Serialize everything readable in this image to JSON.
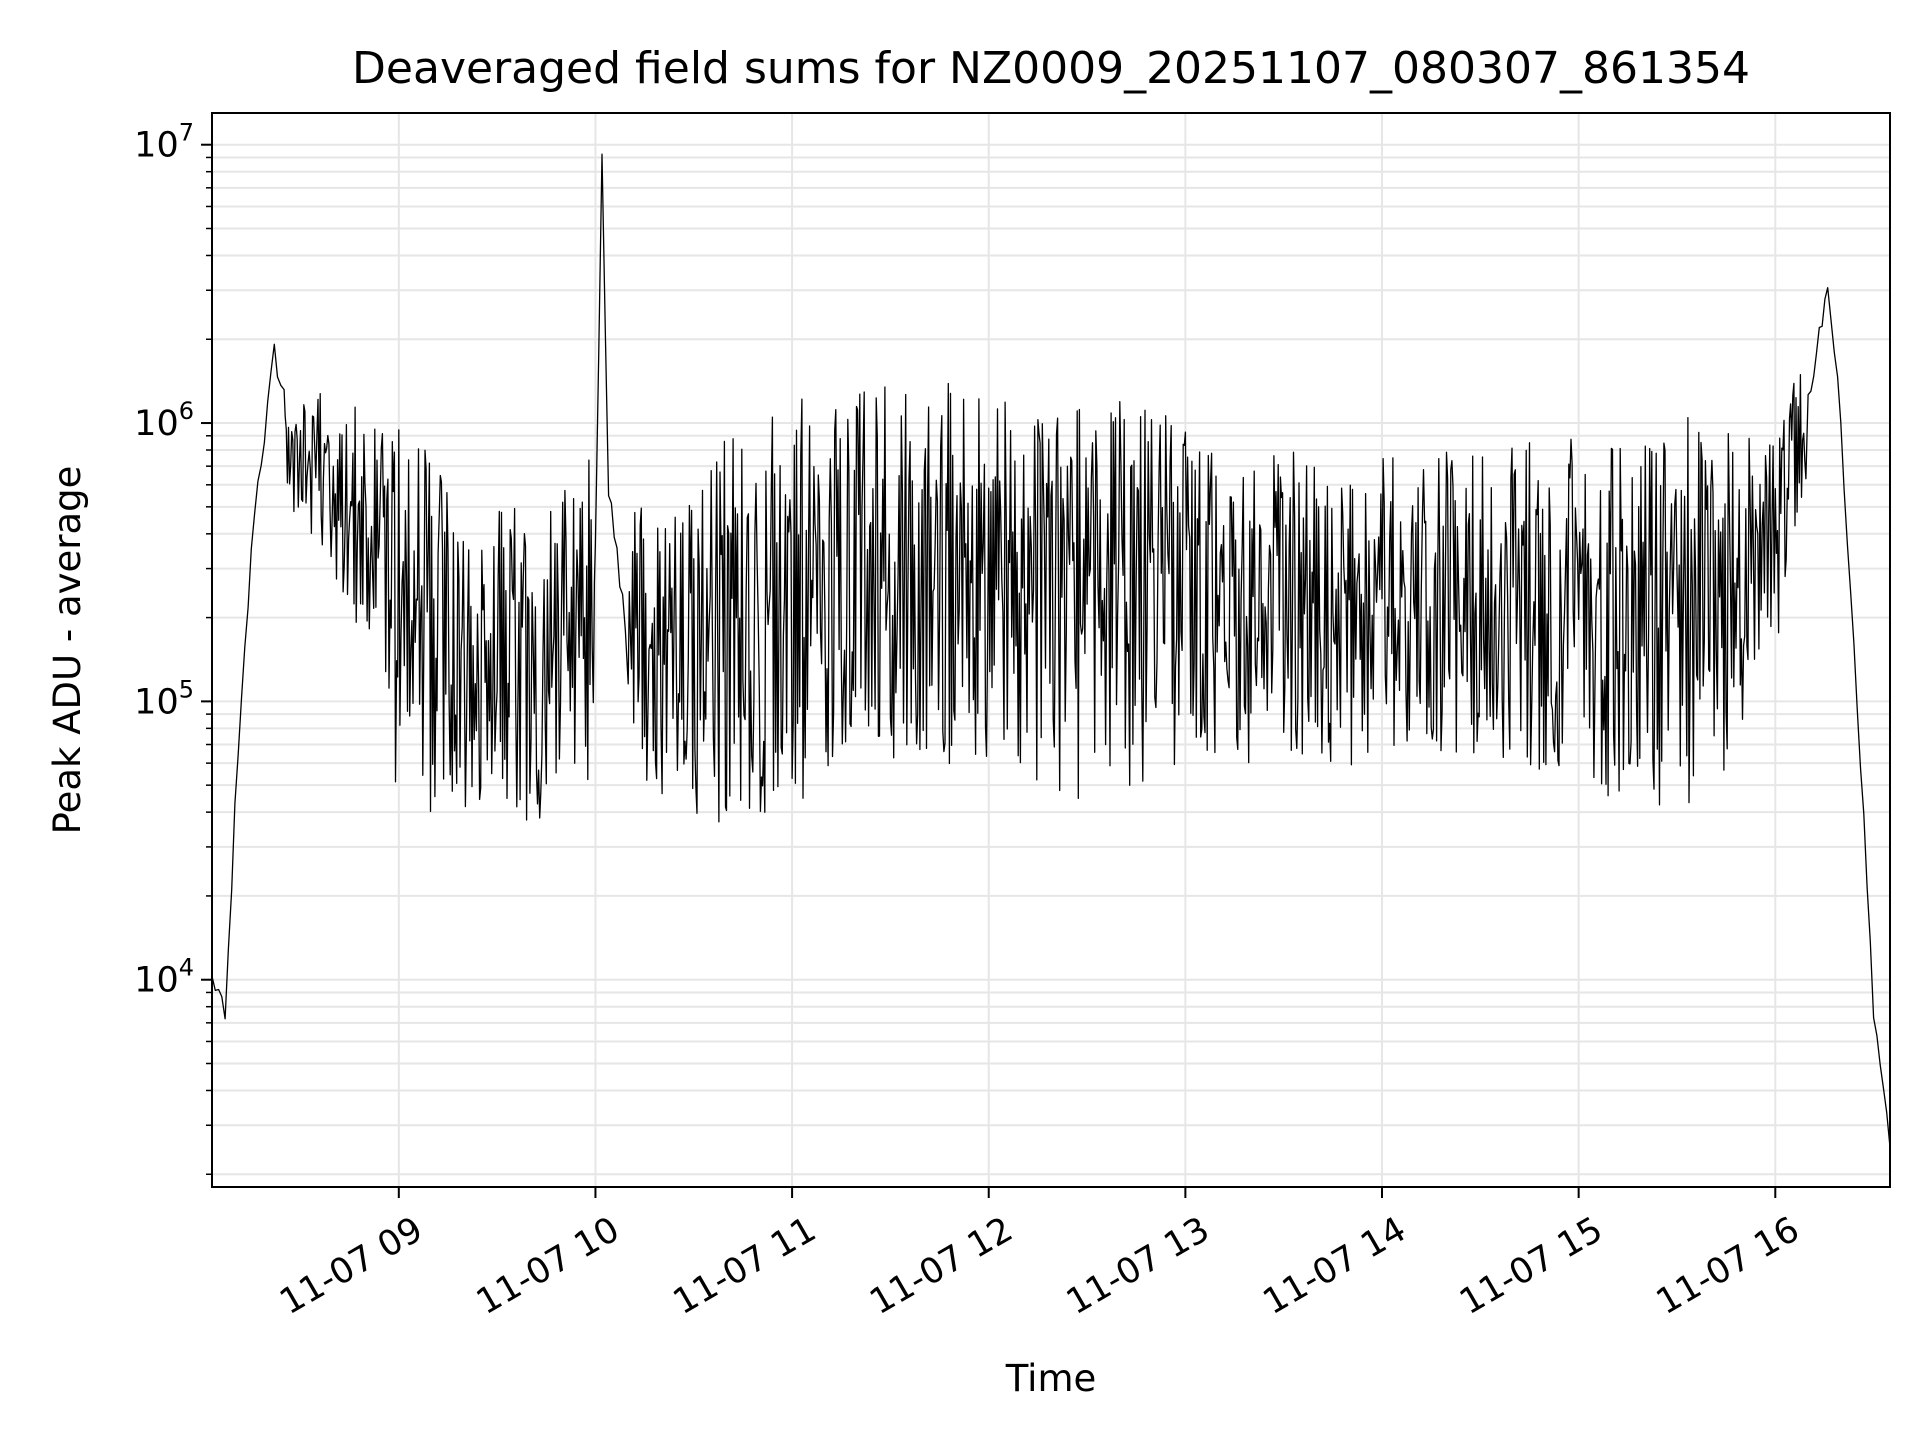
{
  "chart_data": {
    "type": "line",
    "title": "Deaveraged field sums for NZ0009_20251107_080307_861354",
    "xlabel": "Time",
    "ylabel": "Peak ADU - average",
    "yscale": "log",
    "ylim": [
      1800,
      13000000
    ],
    "xlim": [
      "2025-11-07 08:03",
      "2025-11-07 16:35"
    ],
    "grid": true,
    "line_color": "#000000",
    "grid_color": "#e6e6e6",
    "x_ticks": [
      {
        "t": "2025-11-07 09:00",
        "label": "11-07 09"
      },
      {
        "t": "2025-11-07 10:00",
        "label": "11-07 10"
      },
      {
        "t": "2025-11-07 11:00",
        "label": "11-07 11"
      },
      {
        "t": "2025-11-07 12:00",
        "label": "11-07 12"
      },
      {
        "t": "2025-11-07 13:00",
        "label": "11-07 13"
      },
      {
        "t": "2025-11-07 14:00",
        "label": "11-07 14"
      },
      {
        "t": "2025-11-07 15:00",
        "label": "11-07 15"
      },
      {
        "t": "2025-11-07 16:00",
        "label": "11-07 16"
      }
    ],
    "y_ticks": [
      {
        "value": 10000,
        "base": "10",
        "exp": "4"
      },
      {
        "value": 100000,
        "base": "10",
        "exp": "5"
      },
      {
        "value": 1000000,
        "base": "10",
        "exp": "6"
      },
      {
        "value": 10000000,
        "base": "10",
        "exp": "7"
      }
    ],
    "series": [
      {
        "x": [
          "2025-11-07 08:03",
          "2025-11-07 08:05",
          "2025-11-07 08:07",
          "2025-11-07 08:10",
          "2025-11-07 08:13",
          "2025-11-07 08:16",
          "2025-11-07 08:19",
          "2025-11-07 08:22",
          "2025-11-07 08:25",
          "2025-11-07 08:30",
          "2025-11-07 08:40",
          "2025-11-07 08:50",
          "2025-11-07 09:00",
          "2025-11-07 09:10",
          "2025-11-07 09:20",
          "2025-11-07 09:30",
          "2025-11-07 09:40",
          "2025-11-07 09:50",
          "2025-11-07 10:00",
          "2025-11-07 10:02",
          "2025-11-07 10:04",
          "2025-11-07 10:10",
          "2025-11-07 10:20",
          "2025-11-07 10:30",
          "2025-11-07 10:40",
          "2025-11-07 10:50",
          "2025-11-07 11:00",
          "2025-11-07 11:15",
          "2025-11-07 11:30",
          "2025-11-07 11:45",
          "2025-11-07 12:00",
          "2025-11-07 12:15",
          "2025-11-07 12:30",
          "2025-11-07 12:45",
          "2025-11-07 13:00",
          "2025-11-07 13:15",
          "2025-11-07 13:30",
          "2025-11-07 13:45",
          "2025-11-07 14:00",
          "2025-11-07 14:15",
          "2025-11-07 14:30",
          "2025-11-07 14:45",
          "2025-11-07 15:00",
          "2025-11-07 15:15",
          "2025-11-07 15:30",
          "2025-11-07 15:45",
          "2025-11-07 16:00",
          "2025-11-07 16:05",
          "2025-11-07 16:10",
          "2025-11-07 16:16",
          "2025-11-07 16:20",
          "2025-11-07 16:25",
          "2025-11-07 16:30",
          "2025-11-07 16:35"
        ],
        "y": [
          10000,
          9000,
          7000,
          40000,
          150000,
          500000,
          900000,
          1800000,
          1200000,
          900000,
          800000,
          900000,
          400000,
          300000,
          200000,
          200000,
          150000,
          200000,
          400000,
          8700000,
          600000,
          150000,
          200000,
          200000,
          220000,
          250000,
          300000,
          400000,
          450000,
          500000,
          500000,
          480000,
          450000,
          420000,
          350000,
          300000,
          250000,
          250000,
          300000,
          320000,
          300000,
          280000,
          250000,
          220000,
          200000,
          200000,
          400000,
          900000,
          1200000,
          3200000,
          1000000,
          100000,
          8000,
          2500
        ],
        "low": [
          null,
          null,
          null,
          null,
          null,
          null,
          null,
          null,
          600000,
          400000,
          300000,
          120000,
          45000,
          36000,
          35000,
          30000,
          28000,
          45000,
          50000,
          null,
          null,
          50000,
          45000,
          40000,
          35000,
          33000,
          40000,
          55000,
          60000,
          55000,
          60000,
          50000,
          40000,
          45000,
          55000,
          60000,
          50000,
          55000,
          65000,
          60000,
          60000,
          55000,
          50000,
          40000,
          40000,
          45000,
          150000,
          300000,
          500000,
          null,
          600000,
          null,
          null,
          null
        ],
        "high": [
          null,
          null,
          null,
          null,
          null,
          null,
          null,
          null,
          1600000,
          1500000,
          1500000,
          1000000,
          1000000,
          900000,
          550000,
          500000,
          500000,
          600000,
          850000,
          null,
          null,
          550000,
          500000,
          650000,
          900000,
          1200000,
          1400000,
          1500000,
          1500000,
          1400000,
          1400000,
          1200000,
          1300000,
          1300000,
          1100000,
          700000,
          800000,
          850000,
          800000,
          850000,
          800000,
          900000,
          900000,
          1000000,
          1100000,
          1000000,
          1000000,
          1400000,
          1600000,
          null,
          1400000,
          null,
          null,
          null
        ]
      }
    ]
  }
}
